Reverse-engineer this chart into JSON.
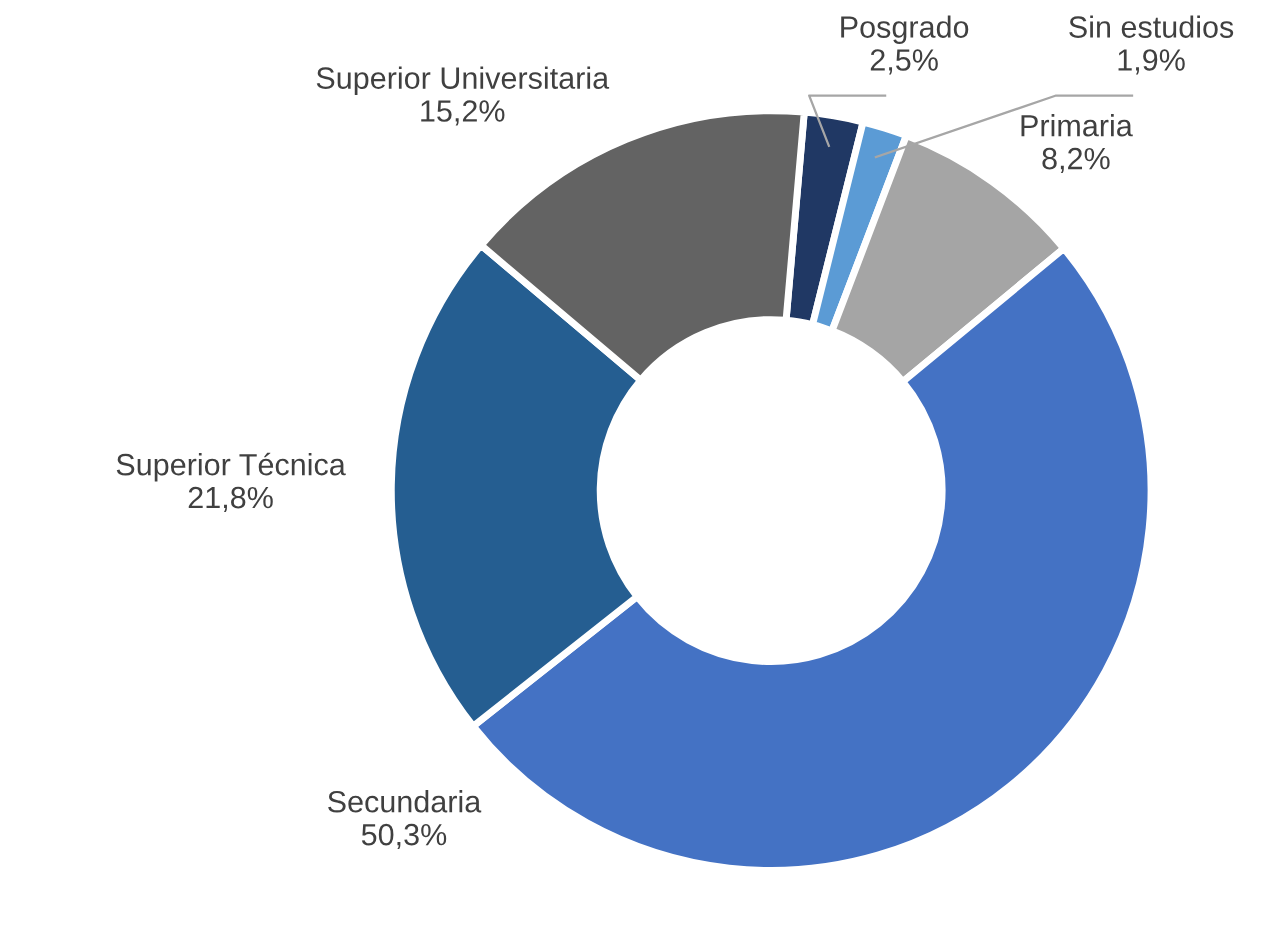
{
  "chart_data": {
    "type": "donut",
    "categories": [
      "Posgrado",
      "Sin estudios",
      "Primaria",
      "Secundaria",
      "Superior Técnica",
      "Superior Universitaria"
    ],
    "values": [
      2.5,
      1.9,
      8.2,
      50.3,
      21.8,
      15.2
    ],
    "value_labels": [
      "2,5%",
      "1,9%",
      "8,2%",
      "50,3%",
      "21,8%",
      "15,2%"
    ],
    "colors": [
      "#203864",
      "#5b9bd5",
      "#a5a5a5",
      "#4472c4",
      "#255e91",
      "#636363"
    ]
  }
}
